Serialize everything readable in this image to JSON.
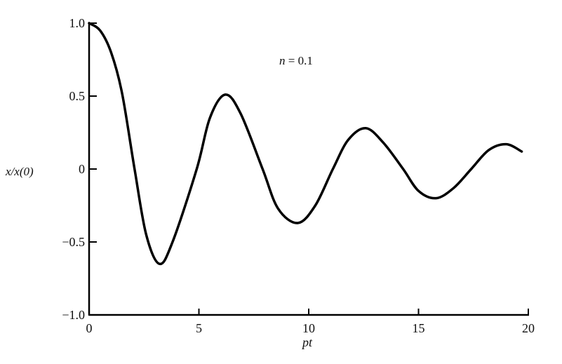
{
  "chart_data": {
    "type": "line",
    "title": "",
    "xlabel": "pt",
    "ylabel": "x/x(0)",
    "annotation": "n = 0.1",
    "xlim": [
      0,
      20
    ],
    "ylim": [
      -1.0,
      1.0
    ],
    "xticks": [
      0,
      5,
      10,
      15,
      20
    ],
    "xtick_labels": [
      "0",
      "5",
      "10",
      "15",
      "20"
    ],
    "yticks": [
      1.0,
      0.5,
      0,
      -0.5,
      -1.0
    ],
    "ytick_labels": [
      "1.0",
      "0.5",
      "0",
      "−0.5",
      "−1.0"
    ],
    "grid": false,
    "line_color": "#000000",
    "series": [
      {
        "x": [
          0,
          0.5,
          1,
          1.5,
          2.07,
          2.6,
          3.2,
          3.8,
          4.9,
          5.5,
          6.2,
          6.9,
          7.9,
          8.6,
          9.5,
          10.3,
          11.1,
          11.8,
          12.6,
          13.4,
          14.3,
          15.0,
          15.8,
          16.6,
          17.4,
          18.2,
          19.0,
          19.7
        ],
        "y": [
          1.0,
          0.95,
          0.8,
          0.52,
          0.0,
          -0.45,
          -0.65,
          -0.5,
          0.0,
          0.35,
          0.51,
          0.38,
          0.0,
          -0.27,
          -0.37,
          -0.25,
          0.0,
          0.2,
          0.28,
          0.18,
          0.0,
          -0.15,
          -0.2,
          -0.13,
          0.0,
          0.13,
          0.17,
          0.12
        ]
      }
    ]
  }
}
